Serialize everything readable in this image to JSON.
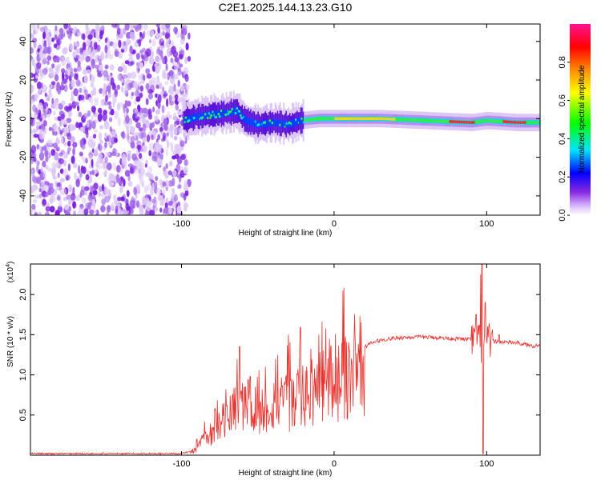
{
  "title": "C2E1.2025.144.13.23.G10",
  "spectrogram": {
    "type": "heatmap",
    "xlabel": "Height of straight line (km)",
    "ylabel": "Frequency (Hz)",
    "xlim": [
      -199,
      135
    ],
    "ylim": [
      -50,
      49
    ],
    "xticks": [
      -100,
      0,
      100
    ],
    "xtick_labels": [
      "-100",
      "0",
      "100"
    ],
    "yticks": [
      -40,
      -20,
      0,
      20,
      40
    ],
    "ytick_labels": [
      "-40",
      "-20",
      "0",
      "20",
      "40"
    ],
    "noise_region_end_km": -95,
    "signal_start_km": -99,
    "ridge_frequency_hz": [
      [
        -99,
        -1
      ],
      [
        -90,
        1
      ],
      [
        -80,
        2
      ],
      [
        -70,
        3
      ],
      [
        -64,
        4
      ],
      [
        -58,
        -1
      ],
      [
        -50,
        -3
      ],
      [
        -40,
        -2
      ],
      [
        -30,
        -3
      ],
      [
        -22,
        -1
      ],
      [
        -10,
        0
      ],
      [
        0,
        0
      ],
      [
        10,
        0
      ],
      [
        30,
        0
      ],
      [
        60,
        -1
      ],
      [
        90,
        -2
      ],
      [
        100,
        -1
      ],
      [
        120,
        -2
      ],
      [
        135,
        -2
      ]
    ],
    "colorbar": {
      "label": "Normalized spectral amplitude",
      "ticks": [
        "0.0",
        "0.2",
        "0.4",
        "0.6",
        "0.8"
      ],
      "tick_values": [
        0.0,
        0.2,
        0.4,
        0.6,
        0.8
      ],
      "range": [
        0,
        1
      ],
      "colors": [
        "#ffffff",
        "#e0c8ff",
        "#8a2be2",
        "#0000ff",
        "#00e5ff",
        "#00ff00",
        "#ffff00",
        "#ff8c00",
        "#ff0000",
        "#ff1493"
      ]
    },
    "colors": {
      "background": "#ffffff"
    }
  },
  "snr": {
    "type": "line",
    "xlabel": "Height of straight line (km)",
    "ylabel": "SNR (10 * v/v)",
    "multiplier_label": "(x10",
    "multiplier_exp": "4",
    "multiplier_close": ")",
    "xlim": [
      -199,
      135
    ],
    "ylim": [
      0,
      2.38
    ],
    "xticks": [
      -100,
      0,
      100
    ],
    "xtick_labels": [
      "-100",
      "0",
      "100"
    ],
    "yticks": [
      0.5,
      1.0,
      1.5,
      2.0
    ],
    "ytick_labels": [
      "0.5",
      "1.0",
      "1.5",
      "2.0"
    ],
    "series_color": "#e8332e",
    "envelope": [
      [
        -199,
        0.02
      ],
      [
        -100,
        0.02
      ],
      [
        -95,
        0.04
      ],
      [
        -90,
        0.1
      ],
      [
        -85,
        0.25
      ],
      [
        -80,
        0.35
      ],
      [
        -75,
        0.45
      ],
      [
        -70,
        0.55
      ],
      [
        -65,
        0.7
      ],
      [
        -60,
        0.75
      ],
      [
        -55,
        0.78
      ],
      [
        -50,
        0.7
      ],
      [
        -45,
        0.72
      ],
      [
        -40,
        0.8
      ],
      [
        -35,
        0.78
      ],
      [
        -30,
        0.82
      ],
      [
        -25,
        0.85
      ],
      [
        -20,
        0.9
      ],
      [
        -15,
        0.98
      ],
      [
        -10,
        1.05
      ],
      [
        -5,
        1.12
      ],
      [
        0,
        1.15
      ],
      [
        5,
        1.2
      ],
      [
        10,
        1.25
      ],
      [
        15,
        1.3
      ],
      [
        20,
        1.35
      ],
      [
        25,
        1.4
      ],
      [
        30,
        1.43
      ],
      [
        40,
        1.46
      ],
      [
        50,
        1.47
      ],
      [
        60,
        1.47
      ],
      [
        70,
        1.46
      ],
      [
        80,
        1.45
      ],
      [
        90,
        1.44
      ],
      [
        95,
        1.45
      ],
      [
        97,
        1.3
      ],
      [
        100,
        1.42
      ],
      [
        110,
        1.41
      ],
      [
        120,
        1.4
      ],
      [
        130,
        1.36
      ],
      [
        135,
        1.37
      ]
    ],
    "peaks": [
      [
        -90,
        0.2
      ],
      [
        -78,
        0.58
      ],
      [
        -62,
        1.35
      ],
      [
        -55,
        0.98
      ],
      [
        -45,
        1.1
      ],
      [
        -37,
        1.25
      ],
      [
        -30,
        1.5
      ],
      [
        -22,
        1.59
      ],
      [
        -10,
        1.5
      ],
      [
        -3,
        1.45
      ],
      [
        5,
        1.4
      ],
      [
        10,
        1.3
      ],
      [
        93,
        1.75
      ],
      [
        96,
        2.25
      ],
      [
        97,
        2.38
      ],
      [
        97.5,
        0.02
      ],
      [
        99,
        1.9
      ],
      [
        102,
        1.55
      ],
      [
        108,
        1.5
      ]
    ]
  }
}
